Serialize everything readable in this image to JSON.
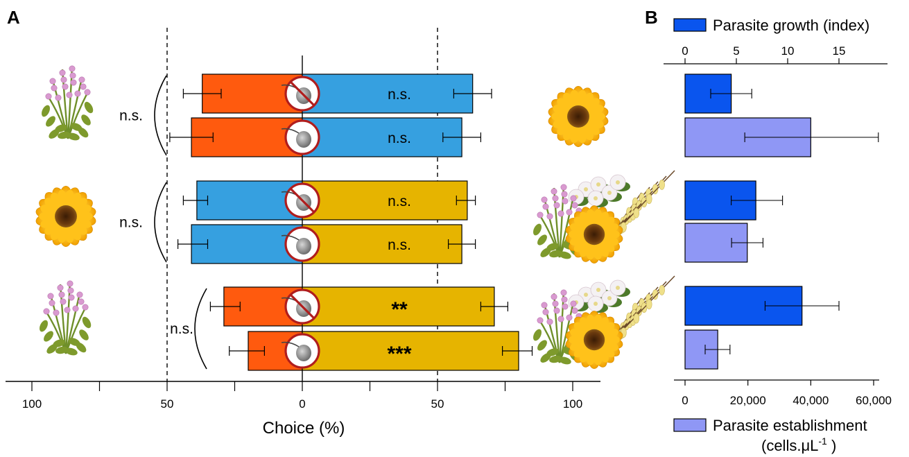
{
  "panels": {
    "a_label": "A",
    "b_label": "B"
  },
  "colors": {
    "heather": "#ff5a0e",
    "sunflower": "#e6b400",
    "sunflower_alt": "#36a0e0",
    "growth": "#0a55ee",
    "establishment": "#8f97f5",
    "inhibitor_ring": "#b01d1d"
  },
  "chart_data": [
    {
      "type": "bar",
      "orientation": "horizontal-diverging",
      "xlabel": "Choice (%)",
      "xlim": [
        -100,
        100
      ],
      "x_ticks": [
        -100,
        -50,
        0,
        50,
        100
      ],
      "x_tick_labels": [
        "100",
        "50",
        "0",
        "50",
        "100"
      ],
      "reference_lines": [
        -50,
        50
      ],
      "groups": [
        {
          "left_flower": "heather",
          "right_flower": "sunflower",
          "group_annotation": "n.s.",
          "rows": [
            {
              "treatment": "inhibitor",
              "left_value": 37,
              "left_error": [
                30,
                44
              ],
              "left_color": "heather",
              "right_value": 63,
              "right_error": [
                56,
                70
              ],
              "right_color": "sunflower_alt",
              "label": "n.s."
            },
            {
              "treatment": "parasite",
              "left_value": 41,
              "left_error": [
                33,
                49
              ],
              "left_color": "heather",
              "right_value": 59,
              "right_error": [
                52,
                66
              ],
              "right_color": "sunflower_alt",
              "label": "n.s."
            }
          ]
        },
        {
          "left_flower": "sunflower",
          "right_flower": "mixed bouquet",
          "group_annotation": "n.s.",
          "rows": [
            {
              "treatment": "inhibitor",
              "left_value": 39,
              "left_error": [
                35,
                44
              ],
              "left_color": "sunflower_alt",
              "right_value": 61,
              "right_error": [
                57,
                64
              ],
              "right_color": "sunflower",
              "label": "n.s."
            },
            {
              "treatment": "parasite",
              "left_value": 41,
              "left_error": [
                35,
                46
              ],
              "left_color": "sunflower_alt",
              "right_value": 59,
              "right_error": [
                54,
                64
              ],
              "right_color": "sunflower",
              "label": "n.s."
            }
          ]
        },
        {
          "left_flower": "heather",
          "right_flower": "mixed bouquet",
          "group_annotation": "n.s.",
          "rows": [
            {
              "treatment": "inhibitor",
              "left_value": 29,
              "left_error": [
                23,
                34
              ],
              "left_color": "heather",
              "right_value": 71,
              "right_error": [
                66,
                76
              ],
              "right_color": "sunflower",
              "label": "**"
            },
            {
              "treatment": "parasite",
              "left_value": 20,
              "left_error": [
                14,
                27
              ],
              "left_color": "heather",
              "right_value": 80,
              "right_error": [
                74,
                85
              ],
              "right_color": "sunflower",
              "label": "***"
            }
          ]
        }
      ]
    },
    {
      "type": "bar",
      "orientation": "horizontal",
      "series": [
        {
          "name": "Parasite growth (index)",
          "axis": "top",
          "color": "growth",
          "values": [
            4.5,
            6.9,
            11.4
          ],
          "error_low": [
            2.5,
            4.5,
            7.8
          ],
          "error_high": [
            6.5,
            9.5,
            15.0
          ]
        },
        {
          "name": "Parasite establishment",
          "name_line2": "(cells.μL",
          "name_exponent": "-1",
          "name_close": " )",
          "axis": "bottom",
          "color": "establishment",
          "values": [
            40000,
            19800,
            10400
          ],
          "error_low": [
            19000,
            14800,
            6400
          ],
          "error_high": [
            61500,
            24800,
            14300
          ]
        }
      ],
      "top_axis": {
        "range": [
          0,
          19.5
        ],
        "ticks": [
          0,
          5,
          10,
          15
        ],
        "tick_labels": [
          "0",
          "5",
          "10",
          "15"
        ]
      },
      "bottom_axis": {
        "range": [
          0,
          64000
        ],
        "ticks": [
          0,
          20000,
          40000,
          60000
        ],
        "tick_labels": [
          "0",
          "20,000",
          "40,000",
          "60,000"
        ]
      }
    }
  ]
}
